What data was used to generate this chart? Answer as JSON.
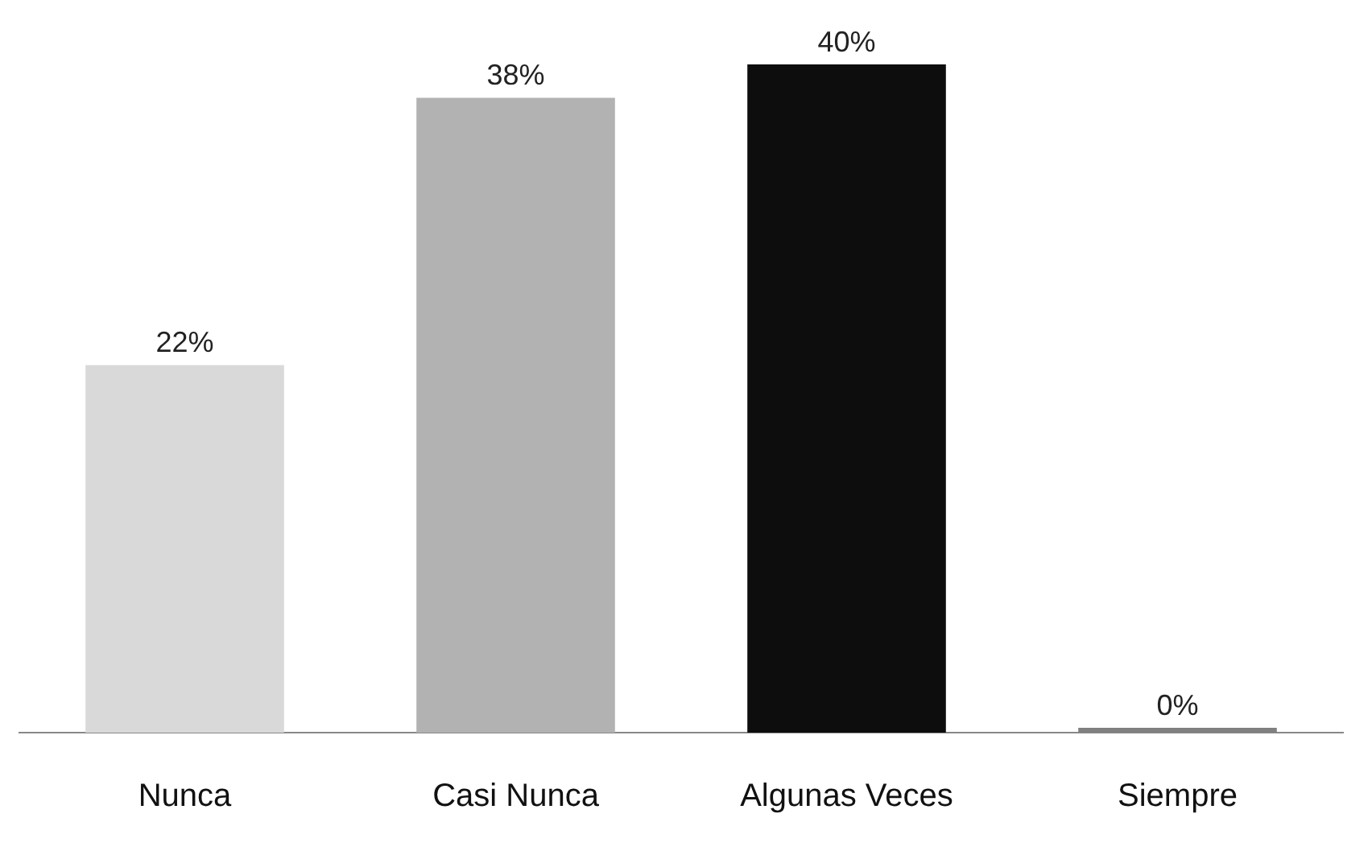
{
  "chart_data": {
    "type": "bar",
    "categories": [
      "Nunca",
      "Casi Nunca",
      "Algunas Veces",
      "Siempre"
    ],
    "values": [
      22,
      38,
      40,
      0
    ],
    "colors": [
      "#d9d9d9",
      "#b2b2b2",
      "#0d0d0d",
      "#808080"
    ],
    "value_labels": [
      "22%",
      "38%",
      "40%",
      "0%"
    ],
    "grid": false,
    "legend": false,
    "tick_labels": "x"
  }
}
